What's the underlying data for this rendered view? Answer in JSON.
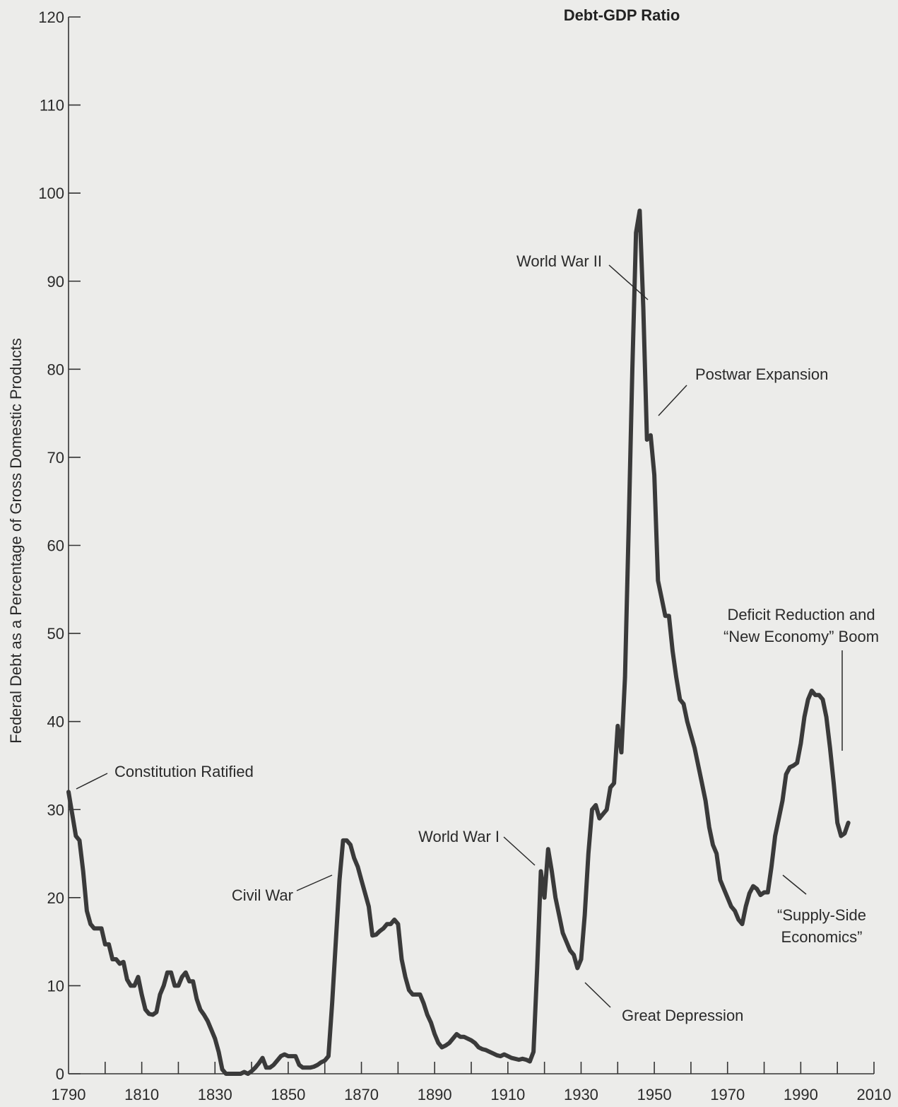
{
  "chart_data": {
    "type": "line",
    "title": "Debt-GDP Ratio",
    "ylabel": "Federal Debt as a Percentage of Gross Domestic Products",
    "xlabel": "",
    "xlim": [
      1790,
      2010
    ],
    "ylim": [
      0,
      120
    ],
    "xticks": [
      1790,
      1810,
      1830,
      1850,
      1870,
      1890,
      1910,
      1930,
      1950,
      1970,
      1990,
      2010
    ],
    "yticks": [
      0,
      10,
      20,
      30,
      40,
      50,
      60,
      70,
      80,
      90,
      100,
      110,
      120
    ],
    "grid": false,
    "line_color": "#3a3a3a",
    "series": [
      {
        "points": [
          [
            1790,
            32
          ],
          [
            1791,
            29.5
          ],
          [
            1792,
            27
          ],
          [
            1793,
            26.5
          ],
          [
            1794,
            23
          ],
          [
            1795,
            18.5
          ],
          [
            1796,
            17
          ],
          [
            1797,
            16.5
          ],
          [
            1798,
            16.5
          ],
          [
            1799,
            16.5
          ],
          [
            1800,
            14.7
          ],
          [
            1801,
            14.7
          ],
          [
            1802,
            13
          ],
          [
            1803,
            13
          ],
          [
            1804,
            12.5
          ],
          [
            1805,
            12.7
          ],
          [
            1806,
            10.7
          ],
          [
            1807,
            10
          ],
          [
            1808,
            10
          ],
          [
            1809,
            11
          ],
          [
            1810,
            9
          ],
          [
            1811,
            7.3
          ],
          [
            1812,
            6.8
          ],
          [
            1813,
            6.7
          ],
          [
            1814,
            7
          ],
          [
            1815,
            9
          ],
          [
            1816,
            10
          ],
          [
            1817,
            11.5
          ],
          [
            1818,
            11.5
          ],
          [
            1819,
            10
          ],
          [
            1820,
            10
          ],
          [
            1821,
            11
          ],
          [
            1822,
            11.5
          ],
          [
            1823,
            10.5
          ],
          [
            1824,
            10.5
          ],
          [
            1825,
            8.5
          ],
          [
            1826,
            7.3
          ],
          [
            1827,
            6.7
          ],
          [
            1828,
            6
          ],
          [
            1829,
            5
          ],
          [
            1830,
            4
          ],
          [
            1831,
            2.5
          ],
          [
            1832,
            0.5
          ],
          [
            1833,
            0
          ],
          [
            1834,
            0
          ],
          [
            1835,
            0
          ],
          [
            1836,
            0
          ],
          [
            1837,
            0
          ],
          [
            1838,
            0.2
          ],
          [
            1839,
            0
          ],
          [
            1840,
            0.3
          ],
          [
            1841,
            0.7
          ],
          [
            1842,
            1.2
          ],
          [
            1843,
            1.8
          ],
          [
            1844,
            0.7
          ],
          [
            1845,
            0.7
          ],
          [
            1846,
            1
          ],
          [
            1847,
            1.5
          ],
          [
            1848,
            2
          ],
          [
            1849,
            2.2
          ],
          [
            1850,
            2
          ],
          [
            1851,
            2
          ],
          [
            1852,
            2
          ],
          [
            1853,
            1
          ],
          [
            1854,
            0.7
          ],
          [
            1855,
            0.7
          ],
          [
            1856,
            0.7
          ],
          [
            1857,
            0.8
          ],
          [
            1858,
            1
          ],
          [
            1859,
            1.3
          ],
          [
            1860,
            1.5
          ],
          [
            1861,
            2
          ],
          [
            1862,
            8
          ],
          [
            1863,
            15
          ],
          [
            1864,
            22
          ],
          [
            1865,
            26.5
          ],
          [
            1866,
            26.5
          ],
          [
            1867,
            26
          ],
          [
            1868,
            24.5
          ],
          [
            1869,
            23.5
          ],
          [
            1870,
            22
          ],
          [
            1871,
            20.5
          ],
          [
            1872,
            19
          ],
          [
            1873,
            15.7
          ],
          [
            1874,
            15.8
          ],
          [
            1875,
            16.2
          ],
          [
            1876,
            16.5
          ],
          [
            1877,
            17
          ],
          [
            1878,
            17
          ],
          [
            1879,
            17.5
          ],
          [
            1880,
            17
          ],
          [
            1881,
            13
          ],
          [
            1882,
            11
          ],
          [
            1883,
            9.5
          ],
          [
            1884,
            9
          ],
          [
            1885,
            9
          ],
          [
            1886,
            9
          ],
          [
            1887,
            8
          ],
          [
            1888,
            6.7
          ],
          [
            1889,
            5.8
          ],
          [
            1890,
            4.5
          ],
          [
            1891,
            3.5
          ],
          [
            1892,
            3
          ],
          [
            1893,
            3.2
          ],
          [
            1894,
            3.5
          ],
          [
            1895,
            4
          ],
          [
            1896,
            4.5
          ],
          [
            1897,
            4.2
          ],
          [
            1898,
            4.2
          ],
          [
            1899,
            4
          ],
          [
            1900,
            3.8
          ],
          [
            1901,
            3.5
          ],
          [
            1902,
            3
          ],
          [
            1903,
            2.8
          ],
          [
            1904,
            2.7
          ],
          [
            1905,
            2.5
          ],
          [
            1906,
            2.3
          ],
          [
            1907,
            2.1
          ],
          [
            1908,
            2
          ],
          [
            1909,
            2.2
          ],
          [
            1910,
            2
          ],
          [
            1911,
            1.8
          ],
          [
            1912,
            1.7
          ],
          [
            1913,
            1.6
          ],
          [
            1914,
            1.7
          ],
          [
            1915,
            1.6
          ],
          [
            1916,
            1.4
          ],
          [
            1917,
            2.5
          ],
          [
            1918,
            12
          ],
          [
            1919,
            23
          ],
          [
            1920,
            20
          ],
          [
            1921,
            25.5
          ],
          [
            1922,
            23
          ],
          [
            1923,
            20
          ],
          [
            1924,
            18
          ],
          [
            1925,
            16
          ],
          [
            1926,
            15
          ],
          [
            1927,
            14
          ],
          [
            1928,
            13.5
          ],
          [
            1929,
            12
          ],
          [
            1930,
            13
          ],
          [
            1931,
            18
          ],
          [
            1932,
            25
          ],
          [
            1933,
            30
          ],
          [
            1934,
            30.5
          ],
          [
            1935,
            29
          ],
          [
            1936,
            29.5
          ],
          [
            1937,
            30
          ],
          [
            1938,
            32.5
          ],
          [
            1939,
            33
          ],
          [
            1940,
            39.5
          ],
          [
            1941,
            36.5
          ],
          [
            1942,
            45
          ],
          [
            1943,
            62
          ],
          [
            1944,
            80
          ],
          [
            1945,
            95.5
          ],
          [
            1946,
            98
          ],
          [
            1947,
            87
          ],
          [
            1948,
            72
          ],
          [
            1949,
            72.5
          ],
          [
            1950,
            68
          ],
          [
            1951,
            56
          ],
          [
            1952,
            54
          ],
          [
            1953,
            52
          ],
          [
            1954,
            52
          ],
          [
            1955,
            48
          ],
          [
            1956,
            45
          ],
          [
            1957,
            42.5
          ],
          [
            1958,
            42
          ],
          [
            1959,
            40
          ],
          [
            1960,
            38.5
          ],
          [
            1961,
            37
          ],
          [
            1962,
            35
          ],
          [
            1963,
            33
          ],
          [
            1964,
            31
          ],
          [
            1965,
            28
          ],
          [
            1966,
            26
          ],
          [
            1967,
            25
          ],
          [
            1968,
            22
          ],
          [
            1969,
            21
          ],
          [
            1970,
            20
          ],
          [
            1971,
            19
          ],
          [
            1972,
            18.5
          ],
          [
            1973,
            17.5
          ],
          [
            1974,
            17
          ],
          [
            1975,
            19
          ],
          [
            1976,
            20.5
          ],
          [
            1977,
            21.3
          ],
          [
            1978,
            21
          ],
          [
            1979,
            20.3
          ],
          [
            1980,
            20.6
          ],
          [
            1981,
            20.6
          ],
          [
            1982,
            23.5
          ],
          [
            1983,
            27
          ],
          [
            1984,
            29
          ],
          [
            1985,
            31
          ],
          [
            1986,
            34
          ],
          [
            1987,
            34.8
          ],
          [
            1988,
            35
          ],
          [
            1989,
            35.3
          ],
          [
            1990,
            37.5
          ],
          [
            1991,
            40.5
          ],
          [
            1992,
            42.5
          ],
          [
            1993,
            43.5
          ],
          [
            1994,
            43
          ],
          [
            1995,
            43
          ],
          [
            1996,
            42.5
          ],
          [
            1997,
            40.5
          ],
          [
            1998,
            37
          ],
          [
            1999,
            33
          ],
          [
            2000,
            28.5
          ],
          [
            2001,
            27
          ],
          [
            2002,
            27.3
          ],
          [
            2003,
            28.5
          ]
        ]
      }
    ],
    "annotations": [
      {
        "lines": [
          "Constitution Ratified"
        ],
        "target": [
          1790,
          32
        ]
      },
      {
        "lines": [
          "Civil War"
        ],
        "target": [
          1864,
          24.5
        ]
      },
      {
        "lines": [
          "World War I"
        ],
        "target": [
          1919,
          22.5
        ]
      },
      {
        "lines": [
          "Great Depression"
        ],
        "target": [
          1929,
          13
        ]
      },
      {
        "lines": [
          "World War II"
        ],
        "target": [
          1946,
          95
        ]
      },
      {
        "lines": [
          "Postwar Expansion"
        ],
        "target": [
          1949,
          74.5
        ]
      },
      {
        "lines": [
          "Deficit Reduction and",
          "“New Economy” Boom"
        ],
        "target": [
          1999,
          36.5
        ]
      },
      {
        "lines": [
          "“Supply-Side",
          "Economics”"
        ],
        "target": [
          1979,
          22.5
        ]
      }
    ]
  }
}
